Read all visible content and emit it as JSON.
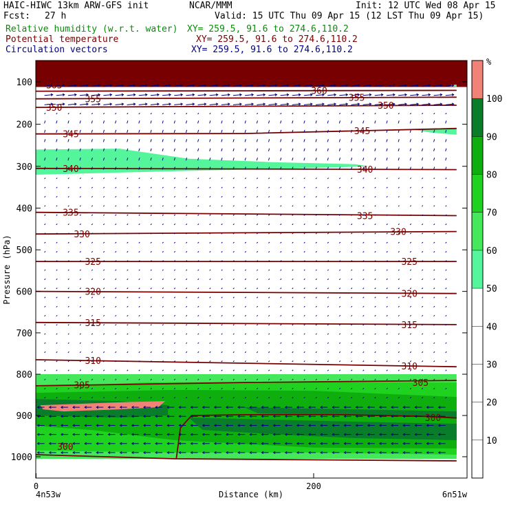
{
  "header": {
    "model_line": "HAIC-HIWC 13km ARW-GFS init",
    "org": "NCAR/MMM",
    "init": "Init: 12 UTC Wed 08 Apr 15",
    "fcst_label": "Fcst:",
    "fcst_value": "27 h",
    "valid": "Valid: 15 UTC Thu 09 Apr 15 (12 LST Thu 09 Apr 15)",
    "rh_label": "Relative humidity (w.r.t. water)",
    "rh_xy": "XY= 259.5, 91.6 to 274.6,110.2",
    "theta_label": "Potential temperature",
    "theta_xy": "XY= 259.5, 91.6 to 274.6,110.2",
    "vec_label": "Circulation vectors",
    "vec_xy": "XY= 259.5, 91.6 to 274.6,110.2"
  },
  "colors": {
    "rh_50_60": "#55f59b",
    "rh_60_70": "#44e85a",
    "rh_70_80": "#1fd21f",
    "rh_80_90": "#0fae0f",
    "rh_90_100": "#0a7d2a",
    "rh_100_plus": "#f08278",
    "topband": "#780000",
    "contour": "#780000",
    "vectors": "#000080",
    "frame": "#000000"
  },
  "chart_data": {
    "type": "cross-section",
    "xlabel": "Distance (km)",
    "ylabel": "Pressure (hPa)",
    "xlim": [
      0,
      303
    ],
    "ylim_hpa": [
      1050,
      40
    ],
    "x_ticks": [
      0,
      200
    ],
    "y_ticks": [
      100,
      200,
      300,
      400,
      500,
      600,
      700,
      800,
      900,
      1000
    ],
    "start_label": "4n53w",
    "end_label": "6n51w",
    "colorbar": {
      "unit": "%",
      "levels": [
        10,
        20,
        30,
        40,
        50,
        60,
        70,
        80,
        90,
        100
      ],
      "bins": [
        {
          "range": [
            0,
            50
          ],
          "color": "#ffffff"
        },
        {
          "range": [
            50,
            60
          ],
          "color": "#55f59b"
        },
        {
          "range": [
            60,
            70
          ],
          "color": "#44e85a"
        },
        {
          "range": [
            70,
            80
          ],
          "color": "#1fd21f"
        },
        {
          "range": [
            80,
            90
          ],
          "color": "#0fae0f"
        },
        {
          "range": [
            90,
            100
          ],
          "color": "#0a7d2a"
        },
        {
          "range": [
            100,
            110
          ],
          "color": "#f08278"
        }
      ]
    },
    "theta_contours": [
      {
        "label": "370",
        "points": [
          [
            0,
            92
          ],
          [
            300,
            88
          ]
        ],
        "label_at": [
          [
            37,
            89
          ]
        ]
      },
      {
        "label": "365",
        "points": [
          [
            0,
            107
          ],
          [
            100,
            104
          ],
          [
            200,
            104
          ],
          [
            303,
            105
          ]
        ],
        "label_at": [
          [
            13,
            107
          ],
          [
            252,
            104
          ]
        ]
      },
      {
        "label": "360",
        "points": [
          [
            0,
            122
          ],
          [
            150,
            121
          ],
          [
            303,
            120
          ]
        ],
        "label_at": [
          [
            204,
            120
          ]
        ]
      },
      {
        "label": "355",
        "points": [
          [
            0,
            140
          ],
          [
            303,
            136
          ]
        ],
        "label_at": [
          [
            41,
            140
          ],
          [
            231,
            136
          ]
        ]
      },
      {
        "label": "350",
        "points": [
          [
            0,
            160
          ],
          [
            120,
            158
          ],
          [
            303,
            155
          ]
        ],
        "label_at": [
          [
            13,
            160
          ],
          [
            252,
            155
          ]
        ]
      },
      {
        "label": "345",
        "points": [
          [
            0,
            223
          ],
          [
            150,
            222
          ],
          [
            303,
            210
          ]
        ],
        "label_at": [
          [
            25,
            223
          ],
          [
            235,
            215
          ]
        ]
      },
      {
        "label": "340",
        "points": [
          [
            0,
            305
          ],
          [
            303,
            308
          ]
        ],
        "label_at": [
          [
            25,
            305
          ],
          [
            237,
            307
          ]
        ]
      },
      {
        "label": "335",
        "points": [
          [
            0,
            410
          ],
          [
            303,
            418
          ]
        ],
        "label_at": [
          [
            25,
            410
          ],
          [
            237,
            418
          ]
        ]
      },
      {
        "label": "330",
        "points": [
          [
            0,
            462
          ],
          [
            303,
            456
          ]
        ],
        "label_at": [
          [
            33,
            462
          ],
          [
            261,
            456
          ]
        ]
      },
      {
        "label": "325",
        "points": [
          [
            0,
            528
          ],
          [
            303,
            528
          ]
        ],
        "label_at": [
          [
            41,
            528
          ],
          [
            269,
            528
          ]
        ]
      },
      {
        "label": "320",
        "points": [
          [
            0,
            600
          ],
          [
            303,
            605
          ]
        ],
        "label_at": [
          [
            41,
            600
          ],
          [
            269,
            605
          ]
        ]
      },
      {
        "label": "315",
        "points": [
          [
            0,
            675
          ],
          [
            303,
            680
          ]
        ],
        "label_at": [
          [
            41,
            675
          ],
          [
            269,
            680
          ]
        ]
      },
      {
        "label": "310",
        "points": [
          [
            0,
            765
          ],
          [
            303,
            782
          ]
        ],
        "label_at": [
          [
            41,
            767
          ],
          [
            269,
            780
          ]
        ]
      },
      {
        "label": "305",
        "points": [
          [
            0,
            828
          ],
          [
            150,
            820
          ],
          [
            303,
            815
          ]
        ],
        "label_at": [
          [
            33,
            826
          ],
          [
            277,
            820
          ]
        ]
      },
      {
        "label": "300",
        "points": [
          [
            0,
            995
          ],
          [
            100,
            1005
          ],
          [
            303,
            1010
          ]
        ],
        "label_at": [
          [
            21,
            975
          ],
          [
            286,
            905
          ]
        ]
      }
    ],
    "theta_300_closed": {
      "label": "300",
      "points": [
        [
          101,
          1005
        ],
        [
          104,
          930
        ],
        [
          112,
          900
        ],
        [
          150,
          898
        ],
        [
          220,
          898
        ],
        [
          280,
          902
        ],
        [
          303,
          906
        ]
      ]
    },
    "rh_regions": [
      {
        "level": "50-60",
        "points": [
          [
            0,
            260
          ],
          [
            60,
            258
          ],
          [
            110,
            282
          ],
          [
            170,
            290
          ],
          [
            230,
            295
          ],
          [
            240,
            300
          ],
          [
            190,
            305
          ],
          [
            120,
            310
          ],
          [
            60,
            315
          ],
          [
            0,
            320
          ]
        ]
      },
      {
        "level": "50-60",
        "points": [
          [
            270,
            212
          ],
          [
            303,
            208
          ],
          [
            303,
            225
          ],
          [
            285,
            220
          ]
        ]
      },
      {
        "level": "50-60",
        "points": [
          [
            300,
            105
          ],
          [
            303,
            105
          ],
          [
            303,
            112
          ],
          [
            298,
            110
          ]
        ]
      },
      {
        "level": "60-70",
        "points": [
          [
            0,
            800
          ],
          [
            303,
            800
          ],
          [
            303,
            1005
          ],
          [
            0,
            1005
          ]
        ]
      },
      {
        "level": "70-80",
        "points": [
          [
            0,
            830
          ],
          [
            80,
            820
          ],
          [
            200,
            818
          ],
          [
            303,
            820
          ],
          [
            303,
            995
          ],
          [
            200,
            990
          ],
          [
            100,
            990
          ],
          [
            0,
            985
          ]
        ]
      },
      {
        "level": "80-90",
        "points": [
          [
            0,
            845
          ],
          [
            100,
            838
          ],
          [
            200,
            840
          ],
          [
            303,
            855
          ],
          [
            303,
            980
          ],
          [
            200,
            978
          ],
          [
            100,
            960
          ],
          [
            40,
            935
          ],
          [
            0,
            925
          ]
        ]
      },
      {
        "level": "90-100",
        "points": [
          [
            0,
            860
          ],
          [
            60,
            865
          ],
          [
            95,
            875
          ],
          [
            95,
            900
          ],
          [
            60,
            905
          ],
          [
            0,
            900
          ]
        ]
      },
      {
        "level": "90-100",
        "points": [
          [
            110,
            905
          ],
          [
            170,
            910
          ],
          [
            230,
            915
          ],
          [
            303,
            920
          ],
          [
            303,
            960
          ],
          [
            230,
            955
          ],
          [
            170,
            945
          ],
          [
            120,
            935
          ]
        ]
      },
      {
        "level": "90-100",
        "points": [
          [
            150,
            880
          ],
          [
            230,
            885
          ],
          [
            303,
            890
          ],
          [
            303,
            905
          ],
          [
            230,
            900
          ],
          [
            160,
            895
          ]
        ]
      },
      {
        "level": "100+",
        "points": [
          [
            3,
            875
          ],
          [
            20,
            873
          ],
          [
            60,
            868
          ],
          [
            93,
            865
          ],
          [
            88,
            880
          ],
          [
            60,
            885
          ],
          [
            20,
            890
          ],
          [
            5,
            885
          ]
        ]
      }
    ],
    "vector_upper": {
      "p_range": [
        110,
        165
      ],
      "u_dir": 1
    },
    "vector_lower": {
      "p_range": [
        860,
        1000
      ],
      "u_dir": -1
    }
  }
}
